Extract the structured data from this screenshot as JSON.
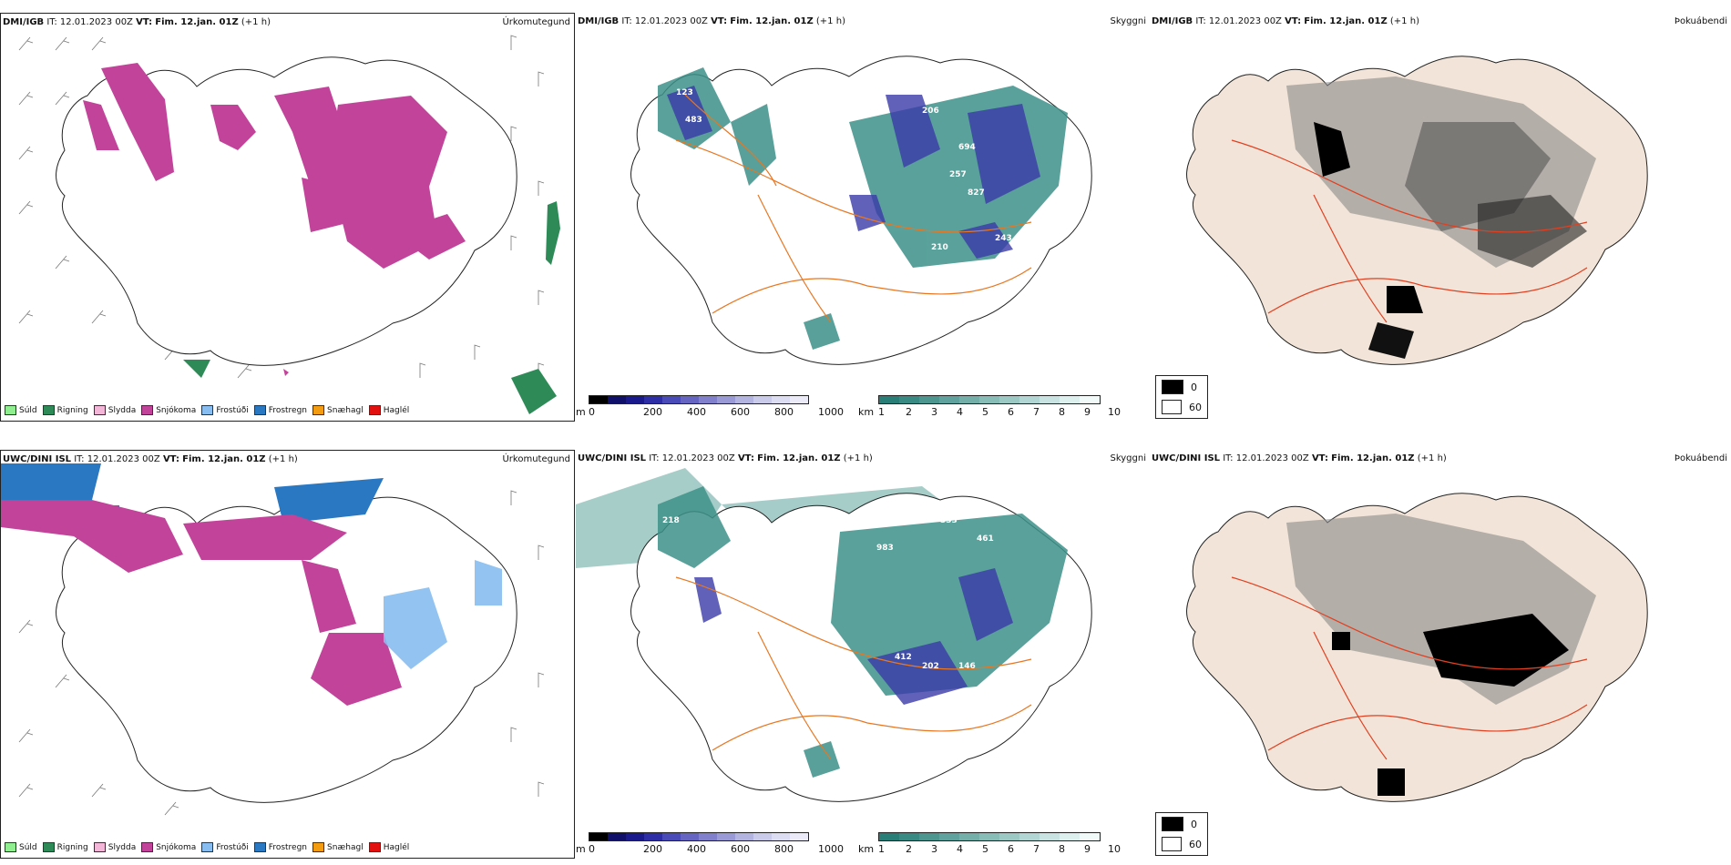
{
  "rows": [
    {
      "source": "DMI/IGB",
      "it_label": "IT:",
      "it_value": "12.01.2023 00Z",
      "vt_label": "VT:",
      "vt_value": "Fim. 12.jan. 01Z",
      "lead": "(+1 h)"
    },
    {
      "source": "UWC/DINI ISL",
      "it_label": "IT:",
      "it_value": "12.01.2023 00Z",
      "vt_label": "VT:",
      "vt_value": "Fim. 12.jan. 01Z",
      "lead": "(+1 h)"
    }
  ],
  "panel_titles": {
    "precip": "Úrkomutegund",
    "visibility": "Skyggni",
    "fog": "Þokuábendi"
  },
  "precip_legend": [
    {
      "label": "Súld",
      "color": "#90ee90"
    },
    {
      "label": "Rigning",
      "color": "#2e8b57"
    },
    {
      "label": "Slydda",
      "color": "#f4b6d8"
    },
    {
      "label": "Snjókoma",
      "color": "#c2449a"
    },
    {
      "label": "Frostúði",
      "color": "#87bdf0"
    },
    {
      "label": "Frostregn",
      "color": "#2b78c2"
    },
    {
      "label": "Snæhagl",
      "color": "#f39c12"
    },
    {
      "label": "Haglél",
      "color": "#e31010"
    }
  ],
  "cloudbase_bar": {
    "unit": "m",
    "ticks": [
      "0",
      "200",
      "400",
      "600",
      "800",
      "1000"
    ],
    "colors": [
      "#000000",
      "#10106a",
      "#1a1a8c",
      "#2e2ea6",
      "#4a4ab8",
      "#6666c2",
      "#8080cc",
      "#9a9ad6",
      "#b4b4e0",
      "#cacaea",
      "#dcdcf2",
      "#eaeaf8"
    ]
  },
  "visibility_bar": {
    "unit": "km",
    "ticks": [
      "1",
      "2",
      "3",
      "4",
      "5",
      "6",
      "7",
      "8",
      "9",
      "10"
    ],
    "colors": [
      "#2a7e78",
      "#3a8a84",
      "#4d9690",
      "#60a29d",
      "#74afaa",
      "#88bcb7",
      "#9dc9c5",
      "#b2d6d3",
      "#c8e3e1",
      "#def0ee",
      "#f2faf9"
    ]
  },
  "fog_legend": [
    {
      "label": "0",
      "color": "#000000"
    },
    {
      "label": "60",
      "color": "#ffffff"
    }
  ],
  "colors": {
    "snow": "#c2449a",
    "freezing_rain": "#2b78c2",
    "freezing_drizzle": "#87bdf0",
    "rain": "#2e8b57",
    "drizzle": "#90ee90",
    "low_visibility": "#3c9088",
    "cloud_base": "#3a3aa8",
    "roads": "#e87722",
    "land_fill": "#f2e4d8",
    "red_roads": "#e04020"
  },
  "icons": {
    "wind": "wind-barb-icon"
  }
}
